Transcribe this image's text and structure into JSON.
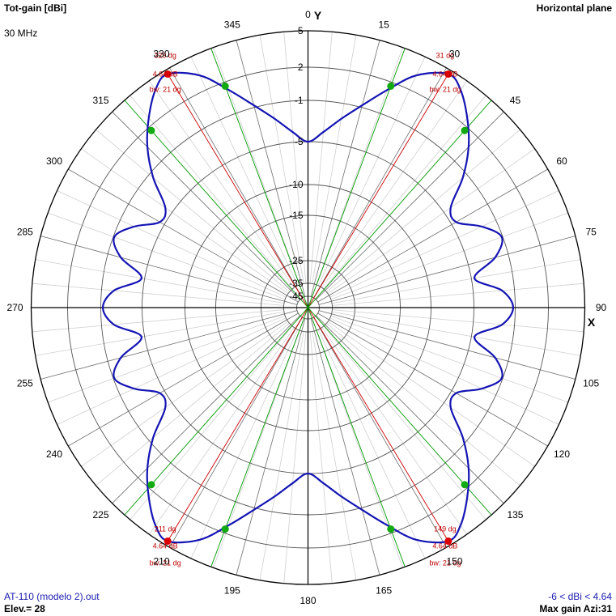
{
  "header": {
    "title": "Tot-gain [dBi]",
    "frequency": "30 MHz",
    "plane": "Horizontal plane"
  },
  "footer": {
    "file": "AT-110 (modelo 2).out",
    "elevation": "Elev.= 28",
    "range": "-6 < dBi < 4.64",
    "max_gain": "Max gain Azi:31"
  },
  "chart_data": {
    "type": "polar-line",
    "axis_labels": {
      "y": "Y",
      "x": "X"
    },
    "angle_ticks": [
      0,
      15,
      30,
      45,
      60,
      75,
      90,
      105,
      120,
      135,
      150,
      165,
      180,
      195,
      210,
      225,
      240,
      255,
      270,
      285,
      300,
      315,
      330,
      345
    ],
    "radial_ticks": [
      {
        "label": "5",
        "value": 5
      },
      {
        "label": "2",
        "value": 2
      },
      {
        "label": "-1",
        "value": -1
      },
      {
        "label": "-5",
        "value": -5
      },
      {
        "label": "-10",
        "value": -10
      },
      {
        "label": "-15",
        "value": -15
      },
      {
        "label": "-25",
        "value": -25
      },
      {
        "label": "-35",
        "value": -35
      },
      {
        "label": "-45",
        "value": -45
      }
    ],
    "pattern": {
      "color": "#1414b4",
      "points": [
        [
          0,
          -5.0
        ],
        [
          5,
          -4.0
        ],
        [
          10,
          -2.5
        ],
        [
          15,
          -0.8
        ],
        [
          20,
          1.2
        ],
        [
          25,
          3.3
        ],
        [
          31,
          4.64
        ],
        [
          35,
          4.1
        ],
        [
          40,
          2.6
        ],
        [
          45,
          0.8
        ],
        [
          50,
          -1.5
        ],
        [
          55,
          -4.2
        ],
        [
          60,
          -4.5
        ],
        [
          65,
          -2.5
        ],
        [
          70,
          -1.1
        ],
        [
          75,
          -2.3
        ],
        [
          80,
          -4.7
        ],
        [
          85,
          -2.2
        ],
        [
          90,
          -1.2
        ],
        [
          95,
          -2.2
        ],
        [
          100,
          -4.7
        ],
        [
          105,
          -2.3
        ],
        [
          110,
          -1.1
        ],
        [
          115,
          -2.5
        ],
        [
          120,
          -4.5
        ],
        [
          125,
          -4.2
        ],
        [
          130,
          -1.5
        ],
        [
          135,
          0.8
        ],
        [
          140,
          2.6
        ],
        [
          145,
          4.1
        ],
        [
          149,
          4.64
        ],
        [
          155,
          3.3
        ],
        [
          160,
          1.2
        ],
        [
          165,
          -0.8
        ],
        [
          170,
          -2.5
        ],
        [
          175,
          -4.0
        ],
        [
          180,
          -5.0
        ],
        [
          185,
          -4.0
        ],
        [
          190,
          -2.5
        ],
        [
          195,
          -0.8
        ],
        [
          200,
          1.2
        ],
        [
          205,
          3.3
        ],
        [
          211,
          4.64
        ],
        [
          215,
          4.1
        ],
        [
          220,
          2.6
        ],
        [
          225,
          0.8
        ],
        [
          230,
          -1.5
        ],
        [
          235,
          -4.2
        ],
        [
          240,
          -4.5
        ],
        [
          245,
          -2.5
        ],
        [
          250,
          -1.1
        ],
        [
          255,
          -2.3
        ],
        [
          260,
          -4.7
        ],
        [
          265,
          -2.2
        ],
        [
          270,
          -1.2
        ],
        [
          275,
          -2.2
        ],
        [
          280,
          -4.7
        ],
        [
          285,
          -2.3
        ],
        [
          290,
          -1.1
        ],
        [
          295,
          -2.5
        ],
        [
          300,
          -4.5
        ],
        [
          305,
          -4.2
        ],
        [
          310,
          -1.5
        ],
        [
          315,
          0.8
        ],
        [
          320,
          2.6
        ],
        [
          325,
          4.1
        ],
        [
          329,
          4.64
        ],
        [
          335,
          3.3
        ],
        [
          340,
          1.2
        ],
        [
          345,
          -0.8
        ],
        [
          350,
          -2.5
        ],
        [
          355,
          -4.0
        ]
      ]
    },
    "max_markers": [
      {
        "azimuth": 31,
        "gain": 4.64,
        "angle_label": "31 dg",
        "gain_label": "4.64 dB",
        "bw_label": "bw: 21 dg"
      },
      {
        "azimuth": 329,
        "gain": 4.64,
        "angle_label": "329 dg",
        "gain_label": "4.64 dB",
        "bw_label": "bw: 21 dg"
      },
      {
        "azimuth": 149,
        "gain": 4.64,
        "angle_label": "149 dg",
        "gain_label": "4.64 dB",
        "bw_label": "bw: 21 dg"
      },
      {
        "azimuth": 211,
        "gain": 4.64,
        "angle_label": "211 dg",
        "gain_label": "4.64 dB",
        "bw_label": "bw: 21 dg"
      }
    ],
    "beamwidth_markers": [
      {
        "azimuth": 20.5,
        "gain": 1.64
      },
      {
        "azimuth": 41.5,
        "gain": 1.64
      },
      {
        "azimuth": 318.5,
        "gain": 1.64
      },
      {
        "azimuth": 339.5,
        "gain": 1.64
      },
      {
        "azimuth": 138.5,
        "gain": 1.64
      },
      {
        "azimuth": 159.5,
        "gain": 1.64
      },
      {
        "azimuth": 200.5,
        "gain": 1.64
      },
      {
        "azimuth": 221.5,
        "gain": 1.64
      }
    ],
    "colors": {
      "max_line": "#cc0000",
      "beamwidth_line": "#009900",
      "grid": "#000000"
    }
  }
}
